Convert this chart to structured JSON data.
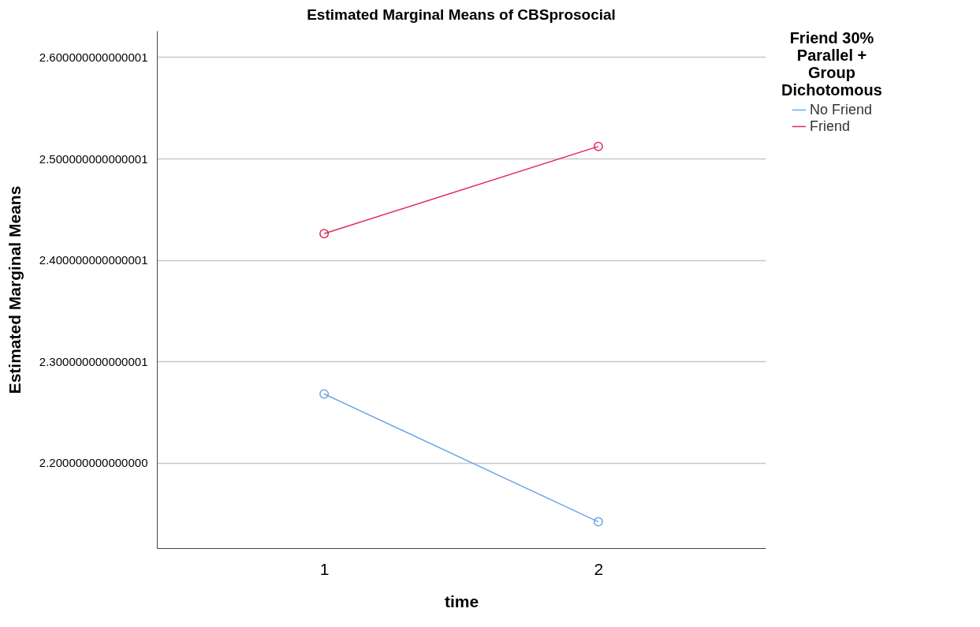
{
  "chart_data": {
    "type": "line",
    "title": "Estimated Marginal Means of CBSprosocial",
    "xlabel": "time",
    "ylabel": "Estimated Marginal Means",
    "legend_title": "Friend 30%\nParallel +\nGroup\nDichotomous",
    "categories": [
      "1",
      "2"
    ],
    "series": [
      {
        "name": "No Friend",
        "color": "#6ea6e6",
        "values": [
          2.268,
          2.142
        ]
      },
      {
        "name": "Friend",
        "color": "#e0285a",
        "values": [
          2.426,
          2.512
        ]
      }
    ],
    "ylim": [
      2.116,
      2.626
    ],
    "yticks": [
      {
        "value": 2.2,
        "label": "2.200000000000000"
      },
      {
        "value": 2.3,
        "label": "2.300000000000001"
      },
      {
        "value": 2.4,
        "label": "2.400000000000001"
      },
      {
        "value": 2.5,
        "label": "2.500000000000001"
      },
      {
        "value": 2.6,
        "label": "2.600000000000001"
      }
    ],
    "grid": "y",
    "legend": "top right",
    "marker": "circle",
    "line_style": "solid"
  }
}
